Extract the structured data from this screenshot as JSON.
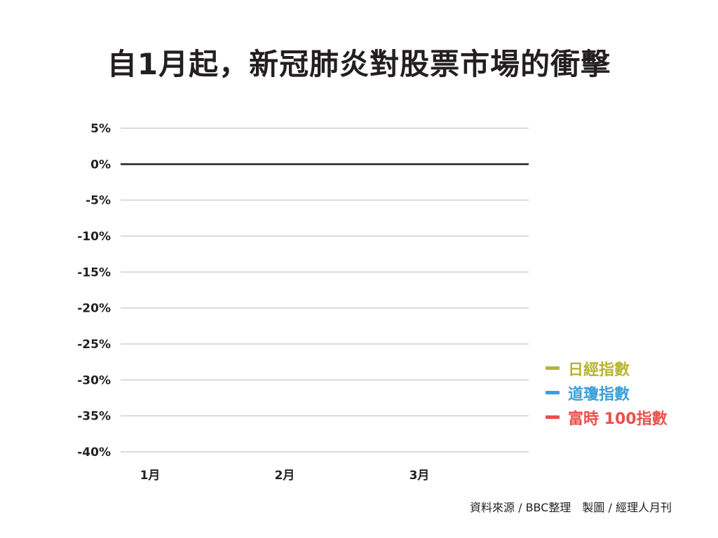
{
  "chart_data": {
    "type": "line",
    "title": "自1月起，新冠肺炎對股票市場的衝擊",
    "x_categories": [
      "1月",
      "2月",
      "3月"
    ],
    "y_ticks": [
      "5%",
      "0%",
      "-5%",
      "-10%",
      "-15%",
      "-20%",
      "-25%",
      "-30%",
      "-35%",
      "-40%"
    ],
    "ylim": [
      -40,
      5
    ],
    "grid": true,
    "baseline_value": 0,
    "legend_position": "right",
    "series": [
      {
        "name": "日經指數",
        "color": "#b5b532",
        "values": []
      },
      {
        "name": "道瓊指數",
        "color": "#3a9fd8",
        "values": []
      },
      {
        "name": "富時 100指數",
        "color": "#e8504b",
        "values": []
      }
    ],
    "source": "資料來源 / BBC整理　製圖 / 經理人月刊"
  },
  "colors": {
    "grid": "#cfcfcf",
    "baseline": "#231f20",
    "text": "#231f20"
  }
}
